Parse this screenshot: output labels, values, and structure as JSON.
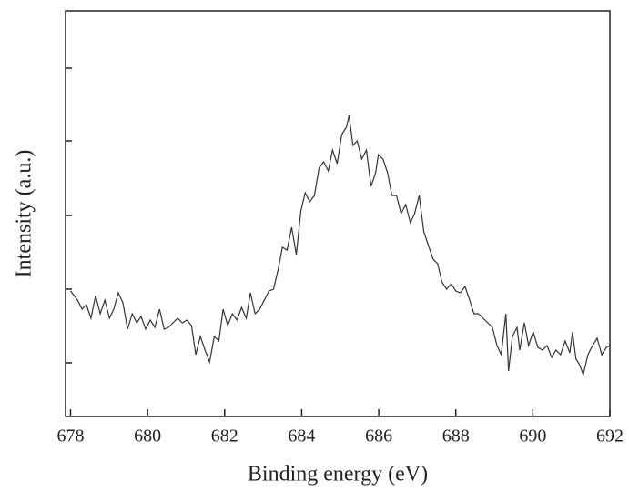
{
  "chart_data": {
    "type": "line",
    "x_label": "Binding energy (eV)",
    "y_label": "Intensity (a.u.)",
    "xlim": [
      677.87,
      692
    ],
    "xticks": [
      678,
      680,
      682,
      684,
      686,
      688,
      690,
      692
    ],
    "ylim": [
      0,
      446
    ],
    "yticks": [
      59,
      140,
      221,
      303,
      383
    ],
    "color": "#333333",
    "x": [
      678.0,
      678.18,
      678.3,
      678.41,
      678.53,
      678.65,
      678.77,
      678.89,
      679.01,
      679.12,
      679.24,
      679.36,
      679.48,
      679.6,
      679.72,
      679.83,
      679.95,
      680.07,
      680.19,
      680.31,
      680.43,
      680.54,
      680.66,
      680.78,
      680.9,
      681.02,
      681.14,
      681.25,
      681.37,
      681.49,
      681.61,
      681.73,
      681.85,
      681.96,
      682.08,
      682.2,
      682.32,
      682.44,
      682.56,
      682.67,
      682.79,
      682.91,
      683.03,
      683.15,
      683.27,
      683.38,
      683.5,
      683.62,
      683.74,
      683.86,
      683.98,
      684.09,
      684.21,
      684.33,
      684.45,
      684.57,
      684.69,
      684.8,
      684.92,
      685.04,
      685.16,
      685.23,
      685.33,
      685.44,
      685.56,
      685.68,
      685.8,
      685.92,
      685.99,
      686.11,
      686.23,
      686.34,
      686.46,
      686.58,
      686.7,
      686.82,
      686.93,
      687.05,
      687.17,
      687.29,
      687.41,
      687.53,
      687.64,
      687.76,
      687.88,
      688.0,
      688.12,
      688.24,
      688.36,
      688.47,
      688.59,
      688.71,
      688.83,
      688.95,
      689.07,
      689.18,
      689.3,
      689.37,
      689.47,
      689.59,
      689.66,
      689.78,
      689.89,
      690.01,
      690.13,
      690.25,
      690.37,
      690.49,
      690.6,
      690.72,
      690.84,
      690.96,
      691.03,
      691.12,
      691.2,
      691.31,
      691.43,
      691.55,
      691.67,
      691.79,
      691.91,
      692.0
    ],
    "values": [
      138,
      128,
      118,
      123,
      108,
      133,
      113,
      128,
      108,
      118,
      136,
      125,
      96,
      113,
      103,
      110,
      96,
      106,
      98,
      118,
      96,
      98,
      103,
      108,
      103,
      106,
      100,
      68,
      88,
      73,
      60,
      88,
      83,
      118,
      100,
      113,
      106,
      120,
      108,
      136,
      113,
      118,
      128,
      138,
      140,
      160,
      186,
      183,
      208,
      178,
      226,
      246,
      236,
      243,
      273,
      280,
      270,
      293,
      278,
      310,
      318,
      331,
      298,
      303,
      283,
      293,
      253,
      268,
      288,
      283,
      268,
      243,
      243,
      223,
      233,
      213,
      223,
      243,
      203,
      188,
      173,
      168,
      148,
      140,
      146,
      138,
      136,
      143,
      128,
      113,
      113,
      108,
      103,
      98,
      78,
      68,
      113,
      50,
      88,
      98,
      73,
      103,
      78,
      93,
      76,
      73,
      78,
      65,
      73,
      68,
      83,
      70,
      93,
      63,
      58,
      46,
      68,
      78,
      86,
      68,
      76,
      78
    ]
  }
}
